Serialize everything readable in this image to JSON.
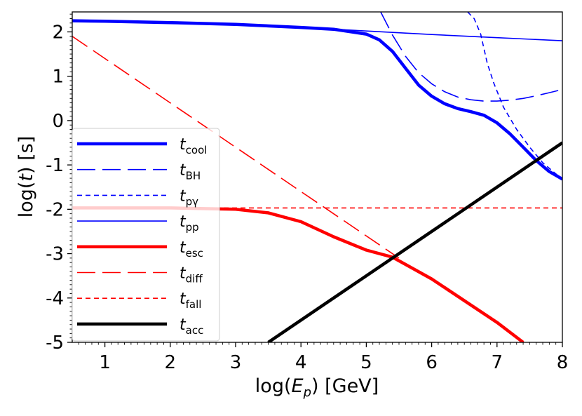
{
  "chart_data": {
    "type": "line",
    "xlabel_prefix": "log(",
    "xlabel_var": "E",
    "xlabel_sub": "p",
    "xlabel_suffix": ") [GeV]",
    "ylabel_prefix": "log(",
    "ylabel_var": "t",
    "ylabel_suffix": ") [s]",
    "xlim": [
      0.5,
      8.0
    ],
    "ylim": [
      -5.0,
      2.45
    ],
    "xticks": [
      1,
      2,
      3,
      4,
      5,
      6,
      7,
      8
    ],
    "xtick_labels": [
      "1",
      "2",
      "3",
      "4",
      "5",
      "6",
      "7",
      "8"
    ],
    "yticks": [
      2,
      1,
      0,
      -1,
      -2,
      -3,
      -4,
      -5
    ],
    "ytick_labels": [
      "2",
      "1",
      "0",
      "-1",
      "-2",
      "-3",
      "-4",
      "-5"
    ],
    "legend_position": "left",
    "series": [
      {
        "key": "cool",
        "symbol": "t",
        "subscript": "cool",
        "sub_italic": false,
        "color": "#0000ff",
        "style": "solid",
        "width": "thick",
        "x": [
          0.5,
          1,
          2,
          3,
          4,
          4.5,
          5.0,
          5.2,
          5.4,
          5.6,
          5.8,
          6.0,
          6.2,
          6.4,
          6.6,
          6.8,
          7.0,
          7.2,
          7.4,
          7.6,
          7.8,
          8.0
        ],
        "y": [
          2.25,
          2.24,
          2.21,
          2.17,
          2.1,
          2.06,
          1.95,
          1.82,
          1.56,
          1.18,
          0.8,
          0.55,
          0.38,
          0.27,
          0.2,
          0.12,
          -0.05,
          -0.3,
          -0.6,
          -0.9,
          -1.15,
          -1.32
        ]
      },
      {
        "key": "bh",
        "symbol": "t",
        "subscript": "BH",
        "sub_italic": false,
        "color": "#0000ff",
        "style": "longdash",
        "width": "thin",
        "x": [
          5.22,
          5.4,
          5.6,
          5.8,
          6.0,
          6.2,
          6.4,
          6.6,
          6.8,
          7.0,
          7.2,
          7.4,
          7.6,
          7.8,
          8.0
        ],
        "y": [
          2.45,
          1.93,
          1.45,
          1.08,
          0.83,
          0.65,
          0.53,
          0.47,
          0.44,
          0.44,
          0.46,
          0.5,
          0.56,
          0.63,
          0.7
        ]
      },
      {
        "key": "pg",
        "symbol": "t",
        "subscript": "pγ",
        "sub_italic": true,
        "color": "#0000ff",
        "style": "shortdash",
        "width": "thin",
        "x": [
          6.55,
          6.65,
          6.75,
          6.85,
          6.95,
          7.1,
          7.3,
          7.5,
          7.7,
          7.9,
          8.0
        ],
        "y": [
          2.45,
          2.3,
          1.95,
          1.3,
          0.85,
          0.3,
          -0.2,
          -0.6,
          -0.95,
          -1.2,
          -1.32
        ]
      },
      {
        "key": "pp",
        "symbol": "t",
        "subscript": "pp",
        "sub_italic": true,
        "color": "#0000ff",
        "style": "solid",
        "width": "thin",
        "x": [
          0.5,
          2,
          4,
          5,
          6,
          7,
          8
        ],
        "y": [
          2.25,
          2.21,
          2.1,
          2.02,
          1.94,
          1.87,
          1.8
        ]
      },
      {
        "key": "esc",
        "symbol": "t",
        "subscript": "esc",
        "sub_italic": false,
        "color": "#ff0000",
        "style": "solid",
        "width": "thick",
        "x": [
          0.5,
          2,
          3,
          3.5,
          4.0,
          4.5,
          5.0,
          5.4,
          6.0,
          7.0,
          7.4
        ],
        "y": [
          -1.97,
          -1.97,
          -2.0,
          -2.08,
          -2.28,
          -2.62,
          -2.92,
          -3.08,
          -3.57,
          -4.55,
          -5.0
        ]
      },
      {
        "key": "diff",
        "symbol": "t",
        "subscript": "diff",
        "sub_italic": false,
        "color": "#ff0000",
        "style": "longdash",
        "width": "thin",
        "x": [
          0.5,
          5.5
        ],
        "y": [
          1.9,
          -3.1
        ]
      },
      {
        "key": "fall",
        "symbol": "t",
        "subscript": "fall",
        "sub_italic": false,
        "color": "#ff0000",
        "style": "shortdash",
        "width": "thin",
        "x": [
          0.5,
          8.0
        ],
        "y": [
          -1.97,
          -1.97
        ]
      },
      {
        "key": "acc",
        "symbol": "t",
        "subscript": "acc",
        "sub_italic": false,
        "color": "#000000",
        "style": "solid",
        "width": "thick",
        "x": [
          3.5,
          8.0
        ],
        "y": [
          -5.0,
          -0.5
        ]
      }
    ]
  }
}
